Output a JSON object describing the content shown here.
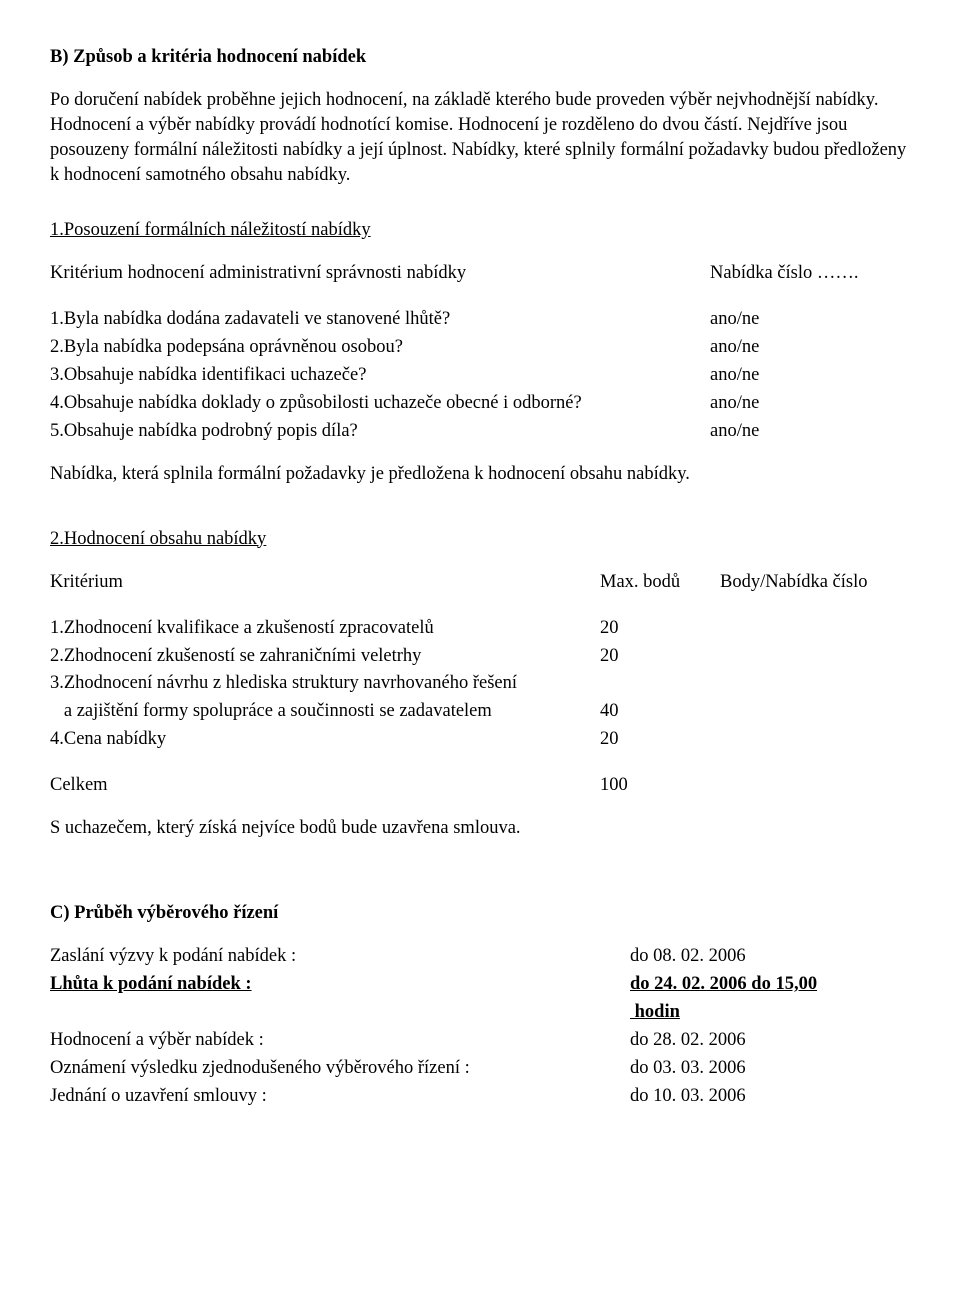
{
  "sectionB": {
    "title": "B) Způsob a kritéria hodnocení nabídek",
    "para1": "Po doručení nabídek proběhne jejich hodnocení, na základě kterého bude proveden výběr nejvhodnější nabídky. Hodnocení a výběr nabídky provádí hodnotící komise. Hodnocení je rozděleno do dvou částí. Nejdříve jsou posouzeny formální náležitosti nabídky a její úplnost. Nabídky, které splnily formální požadavky budou předloženy k hodnocení samotného obsahu nabídky."
  },
  "part1": {
    "heading": "1.Posouzení formálních náležitostí nabídky",
    "criterionRow": {
      "left": "Kritérium hodnocení administrativní správnosti nabídky",
      "right": "Nabídka číslo ……."
    },
    "items": [
      {
        "q": "1.Byla nabídka dodána zadavateli ve stanovené lhůtě?",
        "a": "ano/ne"
      },
      {
        "q": "2.Byla nabídka podepsána oprávněnou osobou?",
        "a": "ano/ne"
      },
      {
        "q": "3.Obsahuje nabídka identifikaci uchazeče?",
        "a": "ano/ne"
      },
      {
        "q": "4.Obsahuje nabídka doklady o způsobilosti uchazeče obecné i odborné?",
        "a": "ano/ne"
      },
      {
        "q": "5.Obsahuje nabídka podrobný popis díla?",
        "a": "ano/ne"
      }
    ],
    "footer": "Nabídka, která splnila formální požadavky je předložena k hodnocení obsahu nabídky."
  },
  "part2": {
    "heading": "2.Hodnocení obsahu nabídky",
    "header": {
      "c1": "Kritérium",
      "c2": "Max. bodů",
      "c3": "Body/Nabídka číslo"
    },
    "rows": [
      {
        "label": "1.Zhodnocení kvalifikace a zkušeností zpracovatelů",
        "pts": "20"
      },
      {
        "label": "2.Zhodnocení zkušeností se zahraničními veletrhy",
        "pts": "20"
      },
      {
        "label": "3.Zhodnocení návrhu z hlediska struktury navrhovaného řešení",
        "pts": ""
      },
      {
        "label": "   a zajištění formy spolupráce a součinnosti se zadavatelem",
        "pts": "40"
      },
      {
        "label": "4.Cena nabídky",
        "pts": "20"
      }
    ],
    "total": {
      "label": "Celkem",
      "pts": "100"
    },
    "footer": "S uchazečem, který získá nejvíce bodů bude uzavřena smlouva."
  },
  "sectionC": {
    "title": "C) Průběh výběrového řízení",
    "rows": [
      {
        "label": "Zaslání výzvy k podání nabídek :",
        "val": "do  08. 02. 2006",
        "bold": false
      },
      {
        "label": "Lhůta k podání nabídek :",
        "val": "do  24. 02. 2006 do 15,00",
        "bold": true
      },
      {
        "label": "",
        "val": " hodin",
        "bold": true
      },
      {
        "label": "Hodnocení a výběr nabídek :",
        "val": "do 28. 02. 2006",
        "bold": false
      },
      {
        "label": "Oznámení výsledku zjednodušeného výběrového řízení :",
        "val": "do 03. 03. 2006",
        "bold": false
      },
      {
        "label": "Jednání o uzavření smlouvy :",
        "val": "do 10. 03. 2006",
        "bold": false
      }
    ]
  }
}
